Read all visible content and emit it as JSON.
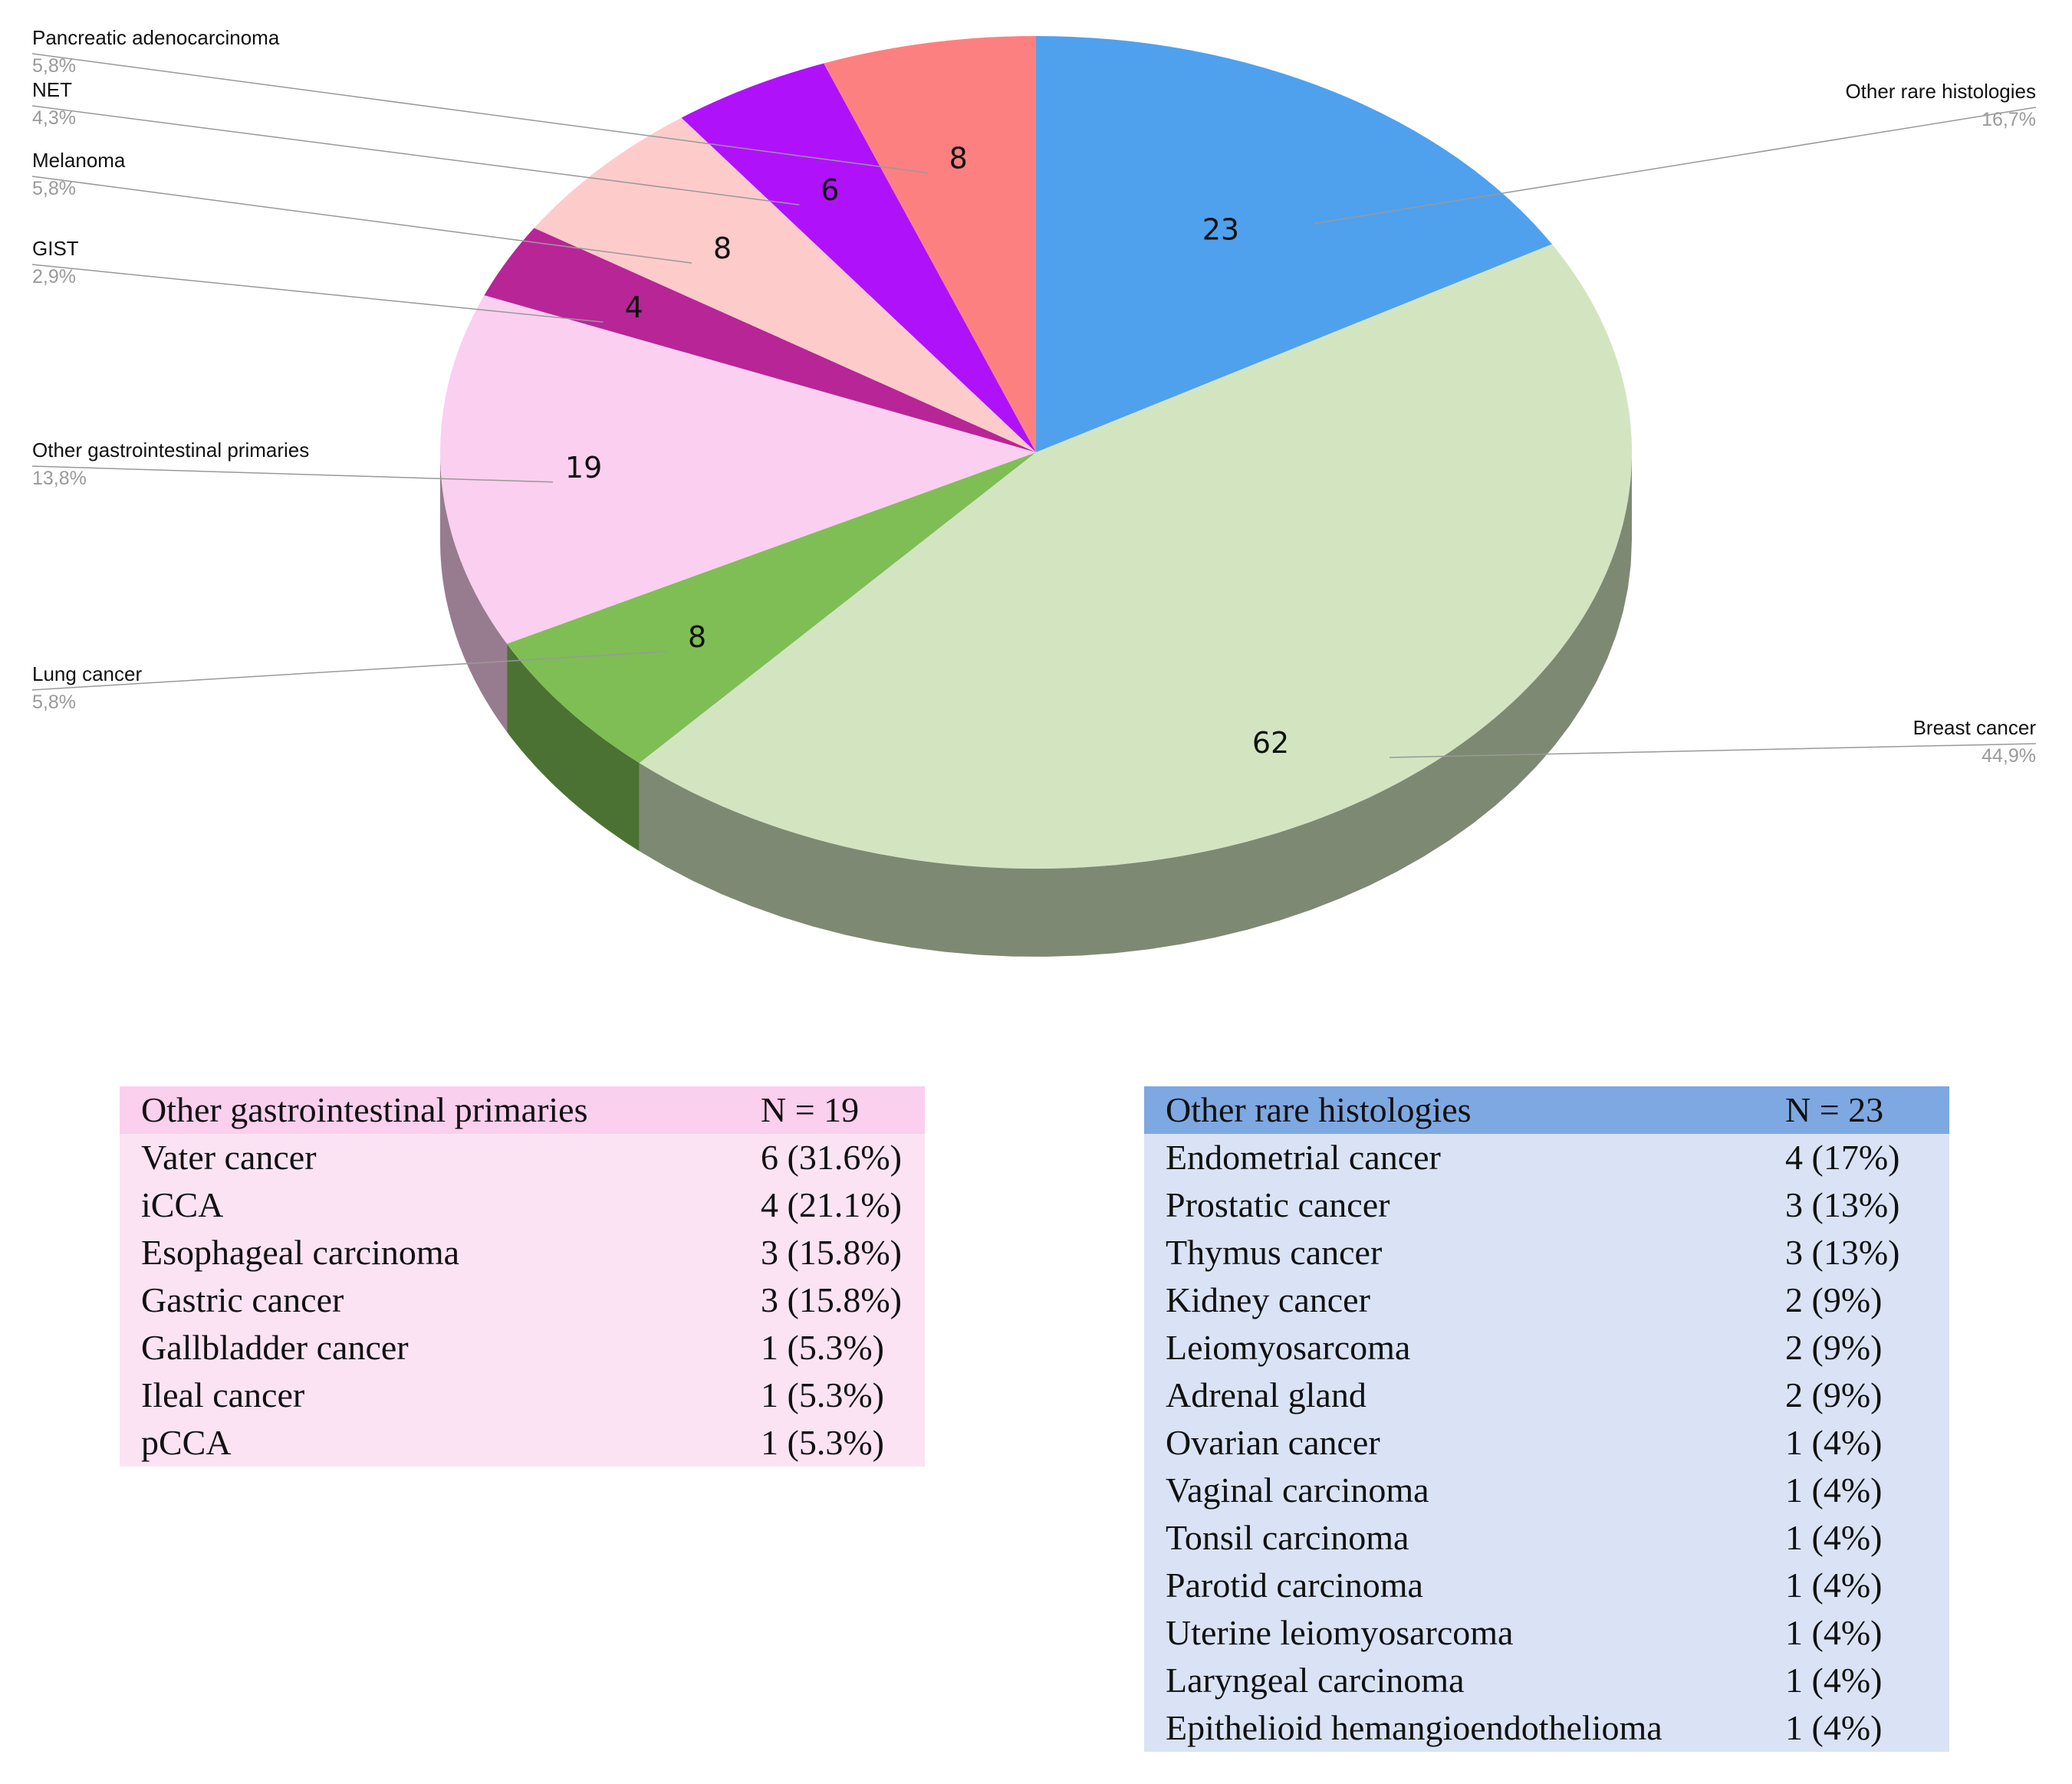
{
  "chart_data": {
    "type": "pie",
    "style": "3d",
    "slices": [
      {
        "label": "Other rare histologies",
        "value": 23,
        "percent": "16,7%",
        "color": "#4fa1ed",
        "side": "right"
      },
      {
        "label": "Breast cancer",
        "value": 62,
        "percent": "44,9%",
        "color": "#d2e5c0",
        "side": "right"
      },
      {
        "label": "Lung cancer",
        "value": 8,
        "percent": "5,8%",
        "color": "#7fbe55",
        "side": "left"
      },
      {
        "label": "Other gastrointestinal primaries",
        "value": 19,
        "percent": "13,8%",
        "color": "#fbcfef",
        "side": "left"
      },
      {
        "label": "GIST",
        "value": 4,
        "percent": "2,9%",
        "color": "#b72597",
        "side": "left"
      },
      {
        "label": "Melanoma",
        "value": 8,
        "percent": "5,8%",
        "color": "#fecbcb",
        "side": "left"
      },
      {
        "label": "NET",
        "value": 6,
        "percent": "4,3%",
        "color": "#b011fb",
        "side": "left"
      },
      {
        "label": "Pancreatic adenocarcinoma",
        "value": 8,
        "percent": "5,8%",
        "color": "#fd8080",
        "side": "left"
      }
    ],
    "label_color": "#111111",
    "percent_color": "#9a9a9a",
    "leader_color": "#999999"
  },
  "tables": {
    "gi": {
      "header": {
        "name": "Other gastrointestinal primaries",
        "n": "N = 19"
      },
      "rows": [
        {
          "name": "Vater cancer",
          "value": "6 (31.6%)"
        },
        {
          "name": "iCCA",
          "value": "4 (21.1%)"
        },
        {
          "name": "Esophageal carcinoma",
          "value": "3 (15.8%)"
        },
        {
          "name": "Gastric cancer",
          "value": "3 (15.8%)"
        },
        {
          "name": "Gallbladder cancer",
          "value": "1 (5.3%)"
        },
        {
          "name": "Ileal cancer",
          "value": "1 (5.3%)"
        },
        {
          "name": "pCCA",
          "value": "1 (5.3%)"
        }
      ]
    },
    "rare": {
      "header": {
        "name": "Other rare histologies",
        "n": "N = 23"
      },
      "rows": [
        {
          "name": "Endometrial cancer",
          "value": "4 (17%)"
        },
        {
          "name": "Prostatic cancer",
          "value": "3 (13%)"
        },
        {
          "name": "Thymus cancer",
          "value": "3 (13%)"
        },
        {
          "name": "Kidney cancer",
          "value": "2 (9%)"
        },
        {
          "name": "Leiomyosarcoma",
          "value": "2 (9%)"
        },
        {
          "name": "Adrenal gland",
          "value": "2 (9%)"
        },
        {
          "name": "Ovarian cancer",
          "value": "1 (4%)"
        },
        {
          "name": "Vaginal carcinoma",
          "value": "1 (4%)"
        },
        {
          "name": "Tonsil carcinoma",
          "value": "1 (4%)"
        },
        {
          "name": "Parotid carcinoma",
          "value": "1 (4%)"
        },
        {
          "name": "Uterine leiomyosarcoma",
          "value": "1 (4%)"
        },
        {
          "name": "Laryngeal carcinoma",
          "value": "1 (4%)"
        },
        {
          "name": "Epithelioid hemangioendothelioma",
          "value": "1 (4%)"
        }
      ]
    }
  }
}
